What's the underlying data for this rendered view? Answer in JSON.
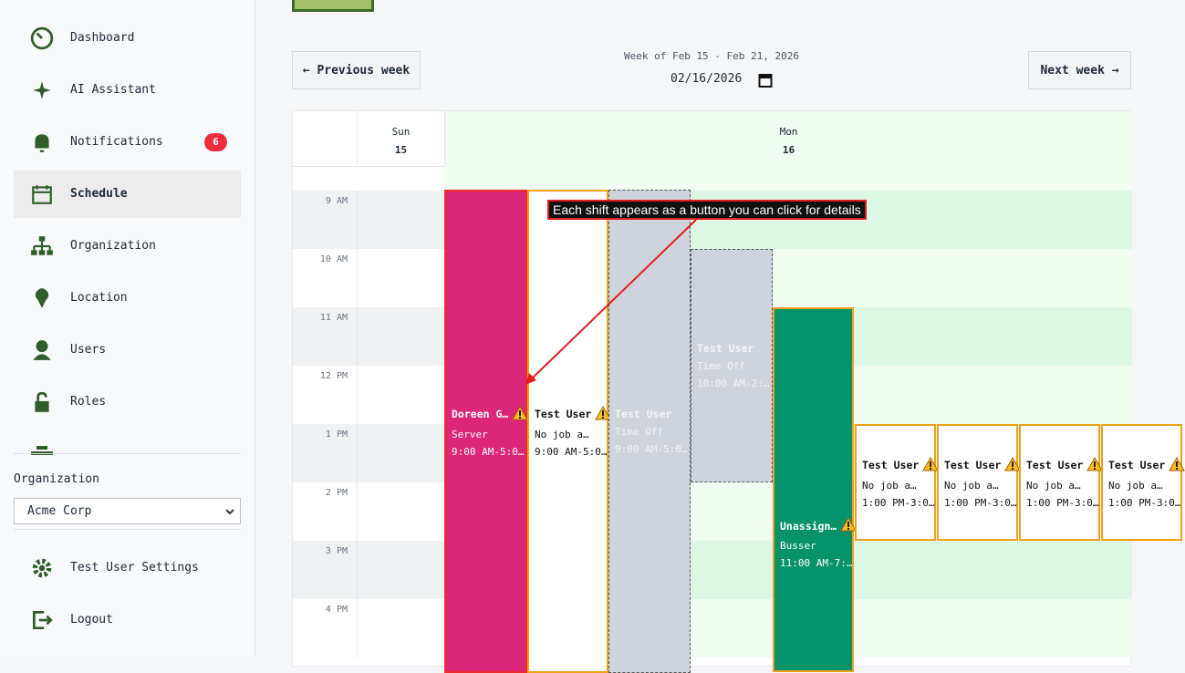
{
  "sidebar": {
    "nav": [
      {
        "label": "Dashboard"
      },
      {
        "label": "AI Assistant"
      },
      {
        "label": "Notifications",
        "badge": "6"
      },
      {
        "label": "Schedule"
      },
      {
        "label": "Organization"
      },
      {
        "label": "Location"
      },
      {
        "label": "Users"
      },
      {
        "label": "Roles"
      }
    ],
    "org_label": "Organization",
    "org_value": "Acme Corp",
    "footer": [
      {
        "label": "Test User Settings"
      },
      {
        "label": "Logout"
      }
    ]
  },
  "toolbar": {
    "prev": "← Previous week",
    "week_label": "Week of Feb 15 - Feb 21, 2026",
    "date": "02/16/2026",
    "next": "Next week →"
  },
  "calendar": {
    "days": [
      {
        "name": "Sun",
        "date": "15"
      },
      {
        "name": "Mon",
        "date": "16"
      }
    ],
    "hours": [
      "9 AM",
      "10 AM",
      "11 AM",
      "12 PM",
      "1 PM",
      "2 PM",
      "3 PM",
      "4 PM"
    ],
    "shifts": [
      {
        "title": "Doreen G…",
        "role": "Server",
        "time": "9:00 AM-5:0…"
      },
      {
        "title": "Test User",
        "role": "No job a…",
        "time": "9:00 AM-5:0…"
      },
      {
        "title": "Test User",
        "role": "Time Off",
        "time": "9:00 AM-5:0…"
      },
      {
        "title": "Test User",
        "role": "Time Off",
        "time": "10:00 AM-2:…"
      },
      {
        "title": "Unassign…",
        "role": "Busser",
        "time": "11:00 AM-7:…"
      },
      {
        "title": "Test User",
        "role": "No job a…",
        "time": "1:00 PM-3:0…"
      },
      {
        "title": "Test User",
        "role": "No job a…",
        "time": "1:00 PM-3:0…"
      },
      {
        "title": "Test User",
        "role": "No job a…",
        "time": "1:00 PM-3:0…"
      },
      {
        "title": "Test User",
        "role": "No job a…",
        "time": "1:00 PM-3:0…"
      }
    ]
  },
  "annotation": "Each shift appears as a button you can click for details"
}
